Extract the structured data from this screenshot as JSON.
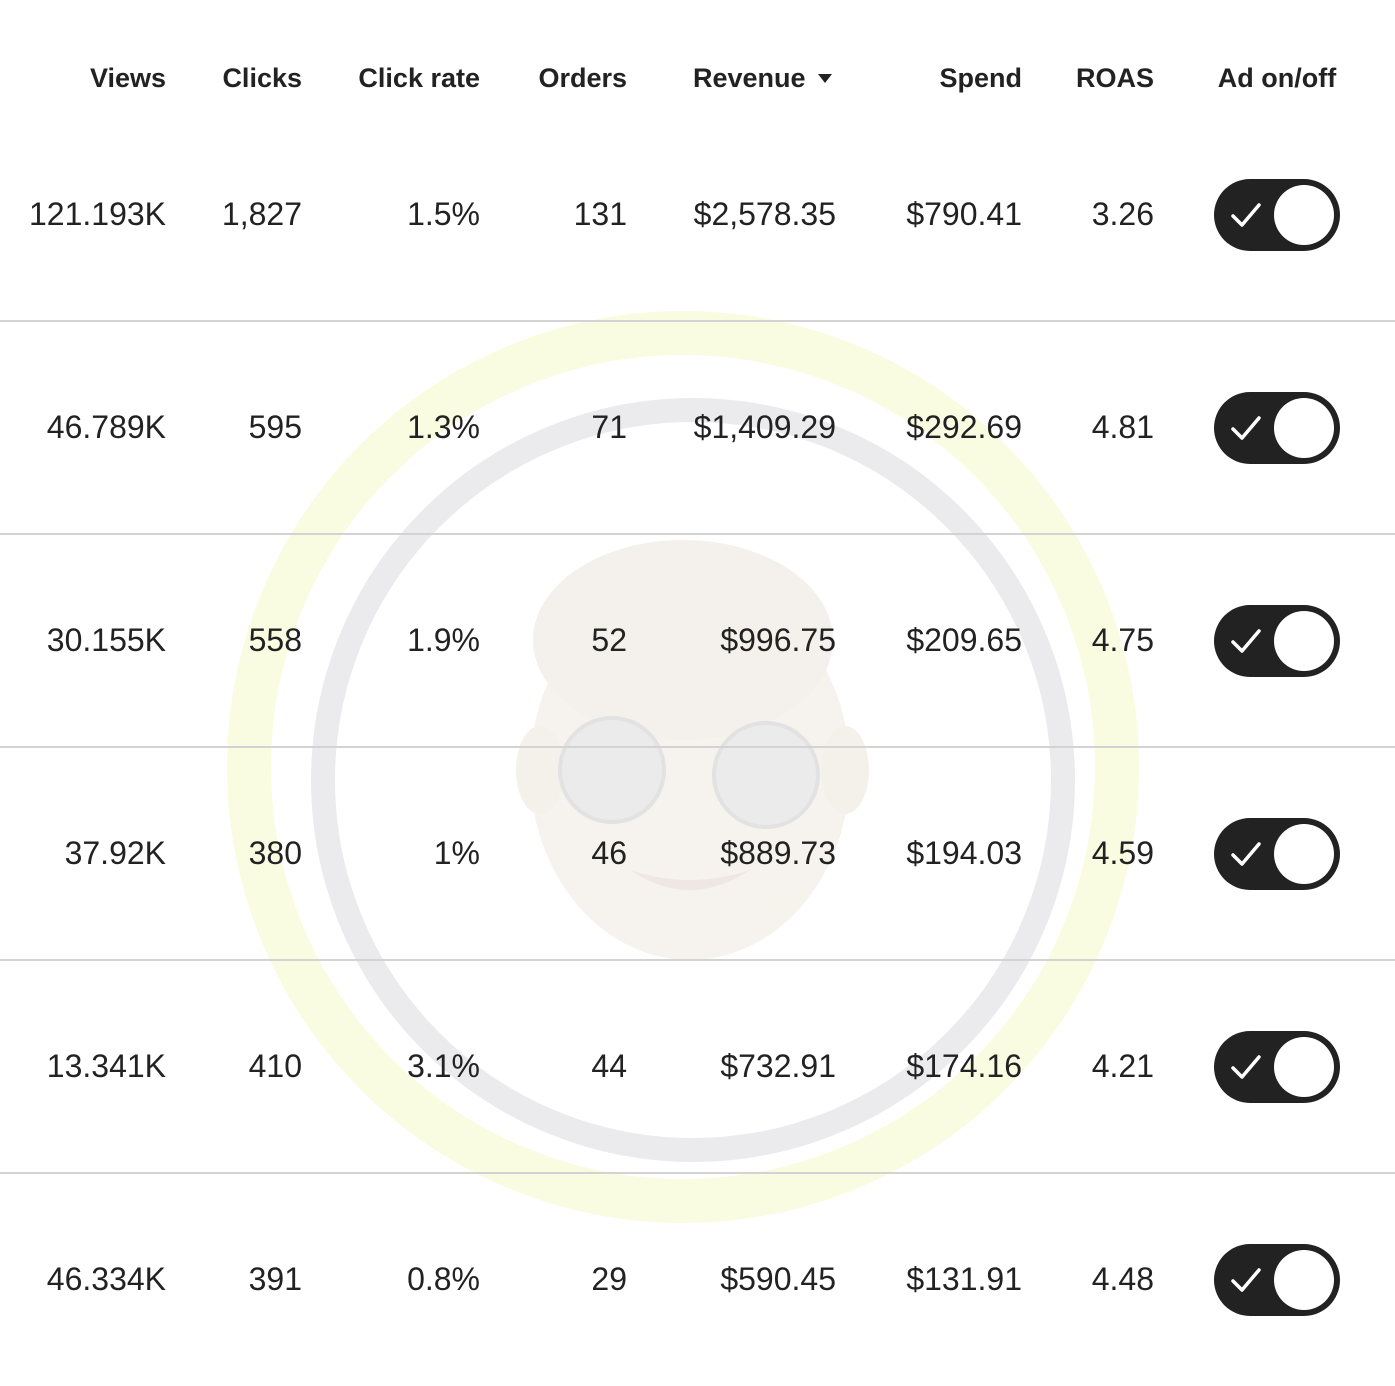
{
  "table": {
    "headers": {
      "views": "Views",
      "clicks": "Clicks",
      "click_rate": "Click rate",
      "orders": "Orders",
      "revenue": "Revenue",
      "spend": "Spend",
      "roas": "ROAS",
      "ad_toggle": "Ad on/off"
    },
    "sorted_column": "revenue",
    "sort_direction": "descending",
    "rows": [
      {
        "views": "121.193K",
        "clicks": "1,827",
        "click_rate": "1.5%",
        "orders": "131",
        "revenue": "$2,578.35",
        "spend": "$790.41",
        "roas": "3.26",
        "ad_on": true
      },
      {
        "views": "46.789K",
        "clicks": "595",
        "click_rate": "1.3%",
        "orders": "71",
        "revenue": "$1,409.29",
        "spend": "$292.69",
        "roas": "4.81",
        "ad_on": true
      },
      {
        "views": "30.155K",
        "clicks": "558",
        "click_rate": "1.9%",
        "orders": "52",
        "revenue": "$996.75",
        "spend": "$209.65",
        "roas": "4.75",
        "ad_on": true
      },
      {
        "views": "37.92K",
        "clicks": "380",
        "click_rate": "1%",
        "orders": "46",
        "revenue": "$889.73",
        "spend": "$194.03",
        "roas": "4.59",
        "ad_on": true
      },
      {
        "views": "13.341K",
        "clicks": "410",
        "click_rate": "3.1%",
        "orders": "44",
        "revenue": "$732.91",
        "spend": "$174.16",
        "roas": "4.21",
        "ad_on": true
      },
      {
        "views": "46.334K",
        "clicks": "391",
        "click_rate": "0.8%",
        "orders": "29",
        "revenue": "$590.45",
        "spend": "$131.91",
        "roas": "4.48",
        "ad_on": true
      }
    ]
  },
  "colors": {
    "text": "#222222",
    "divider": "#d3d3d3",
    "toggle_on": "#222222",
    "toggle_knob": "#ffffff"
  },
  "icons": {
    "sort": "caret-down-icon",
    "toggle_check": "check-icon"
  }
}
